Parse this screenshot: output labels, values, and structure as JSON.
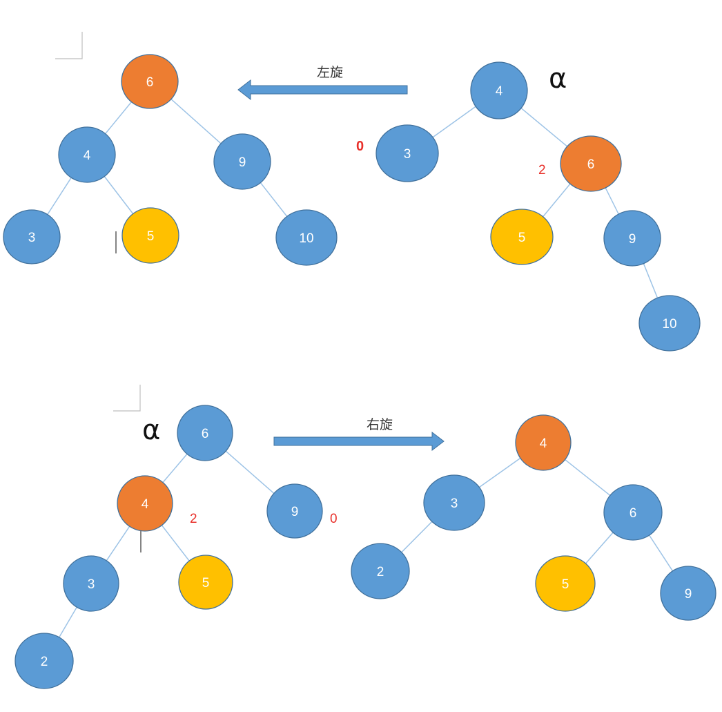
{
  "colors": {
    "blue_node": "#5b9bd5",
    "orange_node": "#ed7d31",
    "yellow_node": "#ffc000",
    "node_stroke": "#41719c",
    "edge": "#9dc3e6",
    "arrow": "#5b9bd5",
    "balance_factor": "#e8302a",
    "alpha": "#111111"
  },
  "diagrams": {
    "left_rotation": {
      "arrow_label": "左旋",
      "before_tree": {
        "nodes": [
          {
            "id": "n4",
            "value": "4",
            "color": "blue"
          },
          {
            "id": "n3",
            "value": "3",
            "color": "blue"
          },
          {
            "id": "n6",
            "value": "6",
            "color": "orange"
          },
          {
            "id": "n5",
            "value": "5",
            "color": "yellow"
          },
          {
            "id": "n9",
            "value": "9",
            "color": "blue"
          },
          {
            "id": "n10",
            "value": "10",
            "color": "blue"
          }
        ],
        "edges": [
          [
            "n4",
            "n3"
          ],
          [
            "n4",
            "n6"
          ],
          [
            "n6",
            "n5"
          ],
          [
            "n6",
            "n9"
          ],
          [
            "n9",
            "n10"
          ]
        ],
        "annotations": {
          "alpha": "α",
          "bf_left": "0",
          "bf_right": "2"
        }
      },
      "after_tree": {
        "nodes": [
          {
            "id": "n6",
            "value": "6",
            "color": "orange"
          },
          {
            "id": "n4",
            "value": "4",
            "color": "blue"
          },
          {
            "id": "n9",
            "value": "9",
            "color": "blue"
          },
          {
            "id": "n3",
            "value": "3",
            "color": "blue"
          },
          {
            "id": "n5",
            "value": "5",
            "color": "yellow"
          },
          {
            "id": "n10",
            "value": "10",
            "color": "blue"
          }
        ],
        "edges": [
          [
            "n6",
            "n4"
          ],
          [
            "n6",
            "n9"
          ],
          [
            "n4",
            "n3"
          ],
          [
            "n4",
            "n5"
          ],
          [
            "n9",
            "n10"
          ]
        ]
      }
    },
    "right_rotation": {
      "arrow_label": "右旋",
      "before_tree": {
        "nodes": [
          {
            "id": "n6",
            "value": "6",
            "color": "blue"
          },
          {
            "id": "n4",
            "value": "4",
            "color": "orange"
          },
          {
            "id": "n9",
            "value": "9",
            "color": "blue"
          },
          {
            "id": "n3",
            "value": "3",
            "color": "blue"
          },
          {
            "id": "n5",
            "value": "5",
            "color": "yellow"
          },
          {
            "id": "n2",
            "value": "2",
            "color": "blue"
          }
        ],
        "edges": [
          [
            "n6",
            "n4"
          ],
          [
            "n6",
            "n9"
          ],
          [
            "n4",
            "n3"
          ],
          [
            "n4",
            "n5"
          ],
          [
            "n3",
            "n2"
          ]
        ],
        "annotations": {
          "alpha": "α",
          "bf_left": "2",
          "bf_right": "0"
        }
      },
      "after_tree": {
        "nodes": [
          {
            "id": "n4",
            "value": "4",
            "color": "orange"
          },
          {
            "id": "n3",
            "value": "3",
            "color": "blue"
          },
          {
            "id": "n6",
            "value": "6",
            "color": "blue"
          },
          {
            "id": "n2",
            "value": "2",
            "color": "blue"
          },
          {
            "id": "n5",
            "value": "5",
            "color": "yellow"
          },
          {
            "id": "n9",
            "value": "9",
            "color": "blue"
          }
        ],
        "edges": [
          [
            "n4",
            "n3"
          ],
          [
            "n4",
            "n6"
          ],
          [
            "n3",
            "n2"
          ],
          [
            "n6",
            "n5"
          ],
          [
            "n6",
            "n9"
          ]
        ]
      }
    }
  }
}
